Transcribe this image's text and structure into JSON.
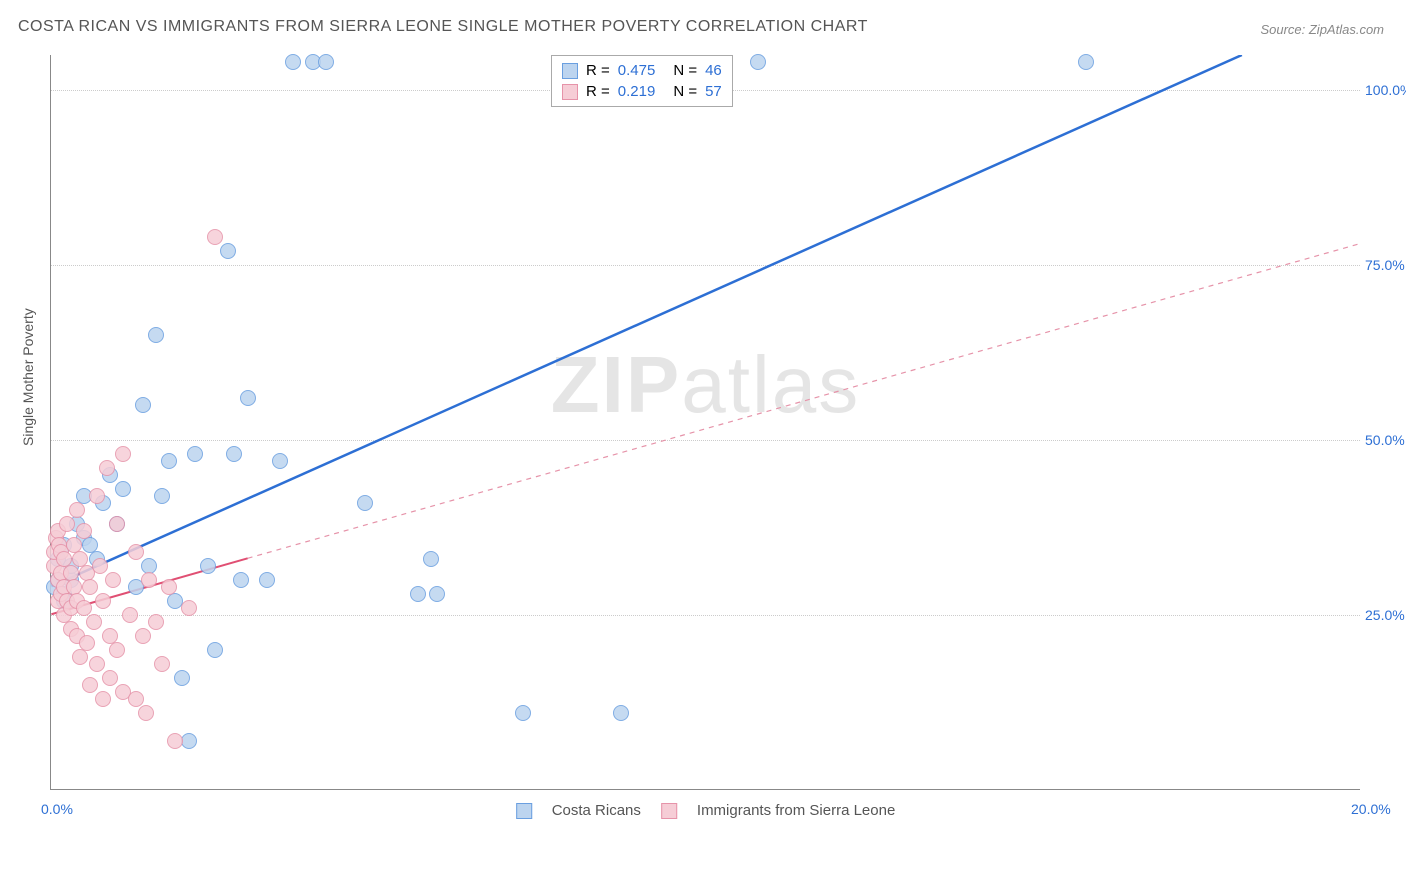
{
  "title": "COSTA RICAN VS IMMIGRANTS FROM SIERRA LEONE SINGLE MOTHER POVERTY CORRELATION CHART",
  "source": "Source: ZipAtlas.com",
  "watermark_bold": "ZIP",
  "watermark_light": "atlas",
  "ylabel": "Single Mother Poverty",
  "chart": {
    "type": "scatter",
    "xlim": [
      0,
      20
    ],
    "ylim": [
      0,
      105
    ],
    "yticks": [
      25,
      50,
      75,
      100
    ],
    "ytick_labels": [
      "25.0%",
      "50.0%",
      "75.0%",
      "100.0%"
    ],
    "xticks": [
      0,
      20
    ],
    "xtick_labels": [
      "0.0%",
      "20.0%"
    ],
    "background": "#ffffff",
    "grid_color": "#cccccc",
    "axis_color": "#888888",
    "tick_color": "#2d6fd4",
    "series": [
      {
        "name": "Costa Ricans",
        "color_fill": "#bcd4ef",
        "color_stroke": "#6a9fe0",
        "marker_radius": 8,
        "R": "0.475",
        "N": "46",
        "trend": {
          "x1": 0,
          "y1": 29,
          "x2": 18.2,
          "y2": 105,
          "color": "#2d6fd4",
          "width": 2.5,
          "dash": "none"
        },
        "points": [
          [
            0.05,
            29
          ],
          [
            0.1,
            30
          ],
          [
            0.1,
            33
          ],
          [
            0.2,
            28
          ],
          [
            0.2,
            35
          ],
          [
            0.2,
            27
          ],
          [
            0.3,
            30
          ],
          [
            0.3,
            32
          ],
          [
            0.4,
            38
          ],
          [
            0.5,
            42
          ],
          [
            0.5,
            36
          ],
          [
            0.6,
            35
          ],
          [
            0.7,
            33
          ],
          [
            0.8,
            41
          ],
          [
            0.9,
            45
          ],
          [
            1.0,
            38
          ],
          [
            1.1,
            43
          ],
          [
            1.3,
            29
          ],
          [
            1.4,
            55
          ],
          [
            1.5,
            32
          ],
          [
            1.6,
            65
          ],
          [
            1.7,
            42
          ],
          [
            1.8,
            47
          ],
          [
            1.9,
            27
          ],
          [
            2.0,
            16
          ],
          [
            2.1,
            7
          ],
          [
            2.2,
            48
          ],
          [
            2.4,
            32
          ],
          [
            2.5,
            20
          ],
          [
            2.7,
            77
          ],
          [
            2.8,
            48
          ],
          [
            2.9,
            30
          ],
          [
            3.0,
            56
          ],
          [
            3.3,
            30
          ],
          [
            3.5,
            47
          ],
          [
            3.7,
            104
          ],
          [
            4.0,
            104
          ],
          [
            4.2,
            104
          ],
          [
            4.8,
            41
          ],
          [
            5.6,
            28
          ],
          [
            5.8,
            33
          ],
          [
            5.9,
            28
          ],
          [
            7.2,
            11
          ],
          [
            8.7,
            11
          ],
          [
            10.8,
            104
          ],
          [
            15.8,
            104
          ]
        ]
      },
      {
        "name": "Immigrants from Sierra Leone",
        "color_fill": "#f6cdd6",
        "color_stroke": "#e693a9",
        "marker_radius": 8,
        "R": "0.219",
        "N": "57",
        "trend_solid": {
          "x1": 0,
          "y1": 25,
          "x2": 3.0,
          "y2": 33,
          "color": "#e04f73",
          "width": 2,
          "dash": "none"
        },
        "trend_dash": {
          "x1": 3.0,
          "y1": 33,
          "x2": 20,
          "y2": 78,
          "color": "#e693a9",
          "width": 1.2,
          "dash": "5,5"
        },
        "points": [
          [
            0.05,
            32
          ],
          [
            0.05,
            34
          ],
          [
            0.08,
            36
          ],
          [
            0.1,
            30
          ],
          [
            0.1,
            37
          ],
          [
            0.1,
            27
          ],
          [
            0.12,
            35
          ],
          [
            0.15,
            31
          ],
          [
            0.15,
            28
          ],
          [
            0.15,
            34
          ],
          [
            0.2,
            29
          ],
          [
            0.2,
            33
          ],
          [
            0.2,
            25
          ],
          [
            0.25,
            27
          ],
          [
            0.25,
            38
          ],
          [
            0.3,
            31
          ],
          [
            0.3,
            26
          ],
          [
            0.3,
            23
          ],
          [
            0.35,
            29
          ],
          [
            0.35,
            35
          ],
          [
            0.4,
            40
          ],
          [
            0.4,
            22
          ],
          [
            0.4,
            27
          ],
          [
            0.45,
            33
          ],
          [
            0.45,
            19
          ],
          [
            0.5,
            26
          ],
          [
            0.5,
            37
          ],
          [
            0.55,
            31
          ],
          [
            0.55,
            21
          ],
          [
            0.6,
            15
          ],
          [
            0.6,
            29
          ],
          [
            0.65,
            24
          ],
          [
            0.7,
            42
          ],
          [
            0.7,
            18
          ],
          [
            0.75,
            32
          ],
          [
            0.8,
            27
          ],
          [
            0.8,
            13
          ],
          [
            0.85,
            46
          ],
          [
            0.9,
            22
          ],
          [
            0.9,
            16
          ],
          [
            0.95,
            30
          ],
          [
            1.0,
            38
          ],
          [
            1.0,
            20
          ],
          [
            1.1,
            48
          ],
          [
            1.1,
            14
          ],
          [
            1.2,
            25
          ],
          [
            1.3,
            13
          ],
          [
            1.3,
            34
          ],
          [
            1.4,
            22
          ],
          [
            1.45,
            11
          ],
          [
            1.5,
            30
          ],
          [
            1.6,
            24
          ],
          [
            1.7,
            18
          ],
          [
            1.8,
            29
          ],
          [
            1.9,
            7
          ],
          [
            2.1,
            26
          ],
          [
            2.5,
            79
          ]
        ]
      }
    ]
  },
  "legend_top_label_R": "R =",
  "legend_top_label_N": "N =",
  "legend_bottom": {
    "a": "Costa Ricans",
    "b": "Immigrants from Sierra Leone"
  }
}
